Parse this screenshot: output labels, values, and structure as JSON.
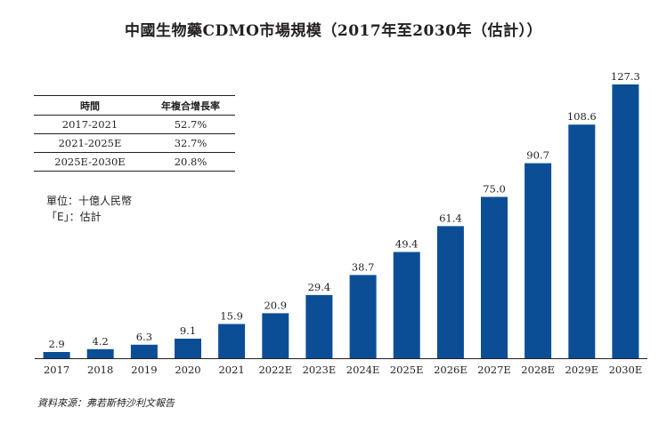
{
  "chart_data": {
    "type": "bar",
    "title": "中國生物藥CDMO市場規模（2017年至2030年（估計））",
    "categories": [
      "2017",
      "2018",
      "2019",
      "2020",
      "2021",
      "2022E",
      "2023E",
      "2024E",
      "2025E",
      "2026E",
      "2027E",
      "2028E",
      "2029E",
      "2030E"
    ],
    "values": [
      2.9,
      4.2,
      6.3,
      9.1,
      15.9,
      20.9,
      29.4,
      38.7,
      49.4,
      61.4,
      75.0,
      90.7,
      108.6,
      127.3
    ],
    "value_labels": [
      "2.9",
      "4.2",
      "6.3",
      "9.1",
      "15.9",
      "20.9",
      "29.4",
      "38.7",
      "49.4",
      "61.4",
      "75.0",
      "90.7",
      "108.6",
      "127.3"
    ],
    "ylim": [
      0,
      127.3
    ],
    "xlabel": "",
    "ylabel": "",
    "bar_color": "#0b4e96",
    "grid": false
  },
  "cagr_table": {
    "headers": [
      "時間",
      "年複合增長率"
    ],
    "rows": [
      [
        "2017-2021",
        "52.7%"
      ],
      [
        "2021-2025E",
        "32.7%"
      ],
      [
        "2025E-2030E",
        "20.8%"
      ]
    ]
  },
  "notes": {
    "unit": "單位：十億人民幣",
    "estimate": "「E」：估計"
  },
  "source": "資料來源：弗若斯特沙利文報告"
}
